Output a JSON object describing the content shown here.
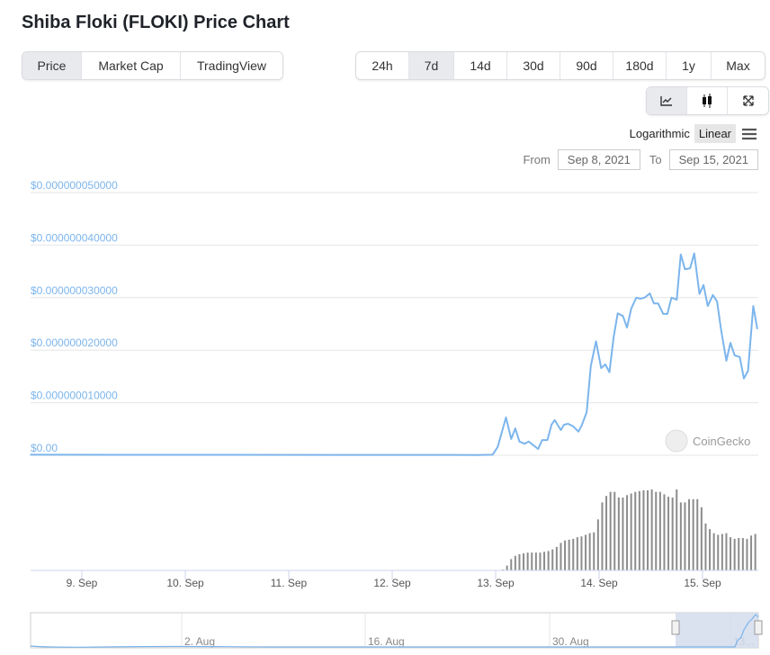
{
  "title": "Shiba Floki (FLOKI) Price Chart",
  "tabs": [
    {
      "label": "Price",
      "active": true
    },
    {
      "label": "Market Cap"
    },
    {
      "label": "TradingView"
    }
  ],
  "ranges": [
    {
      "label": "24h"
    },
    {
      "label": "7d",
      "active": true
    },
    {
      "label": "14d"
    },
    {
      "label": "30d"
    },
    {
      "label": "90d"
    },
    {
      "label": "180d"
    },
    {
      "label": "1y"
    },
    {
      "label": "Max"
    }
  ],
  "chart_types": [
    {
      "icon": "line-chart-icon",
      "active": true
    },
    {
      "icon": "candlestick-icon"
    },
    {
      "icon": "fullscreen-icon"
    }
  ],
  "scale": {
    "log": "Logarithmic",
    "linear": "Linear",
    "menu_icon": "hamburger-menu-icon"
  },
  "dates": {
    "from_label": "From",
    "from": "Sep 8, 2021",
    "to_label": "To",
    "to": "Sep 15, 2021"
  },
  "watermark": "CoinGecko",
  "colors": {
    "line": "#7cb5ec",
    "volume": "#8c8c8c",
    "grid": "#e6e6e6",
    "nav_selection": "#d3dcec"
  },
  "chart_data": {
    "type": "line",
    "yunit": "1e-9 USD",
    "ylim": [
      0,
      50
    ],
    "yticks": [
      {
        "v": 50,
        "label": "$0.000000050000"
      },
      {
        "v": 40,
        "label": "$0.000000040000"
      },
      {
        "v": 30,
        "label": "$0.000000030000"
      },
      {
        "v": 20,
        "label": "$0.000000020000"
      },
      {
        "v": 10,
        "label": "$0.000000010000"
      },
      {
        "v": 0,
        "label": "$0.00"
      }
    ],
    "xlim": [
      8.5,
      15.54
    ],
    "xticks": [
      {
        "d": 9,
        "label": "9. Sep"
      },
      {
        "d": 10,
        "label": "10. Sep"
      },
      {
        "d": 11,
        "label": "11. Sep"
      },
      {
        "d": 12,
        "label": "12. Sep"
      },
      {
        "d": 13,
        "label": "13. Sep"
      },
      {
        "d": 14,
        "label": "14. Sep"
      },
      {
        "d": 15,
        "label": "15. Sep"
      }
    ],
    "price": [
      [
        8.5,
        0.1
      ],
      [
        12.82,
        0.05
      ],
      [
        12.97,
        0.1
      ],
      [
        13.02,
        1.6
      ],
      [
        13.1,
        7.2
      ],
      [
        13.15,
        3.1
      ],
      [
        13.19,
        5.1
      ],
      [
        13.23,
        2.6
      ],
      [
        13.28,
        2.2
      ],
      [
        13.32,
        2.6
      ],
      [
        13.41,
        1.2
      ],
      [
        13.45,
        2.9
      ],
      [
        13.5,
        2.9
      ],
      [
        13.54,
        5.8
      ],
      [
        13.57,
        6.7
      ],
      [
        13.63,
        4.8
      ],
      [
        13.66,
        5.8
      ],
      [
        13.7,
        6.0
      ],
      [
        13.75,
        5.5
      ],
      [
        13.8,
        4.5
      ],
      [
        13.83,
        5.6
      ],
      [
        13.88,
        8.2
      ],
      [
        13.92,
        17.0
      ],
      [
        13.97,
        21.7
      ],
      [
        14.02,
        16.6
      ],
      [
        14.06,
        17.3
      ],
      [
        14.1,
        15.8
      ],
      [
        14.14,
        22.4
      ],
      [
        14.18,
        27.0
      ],
      [
        14.23,
        26.5
      ],
      [
        14.27,
        24.3
      ],
      [
        14.31,
        27.9
      ],
      [
        14.36,
        30.0
      ],
      [
        14.4,
        29.8
      ],
      [
        14.44,
        30.0
      ],
      [
        14.49,
        30.8
      ],
      [
        14.53,
        28.9
      ],
      [
        14.57,
        28.9
      ],
      [
        14.62,
        26.9
      ],
      [
        14.66,
        26.9
      ],
      [
        14.7,
        30.0
      ],
      [
        14.75,
        29.6
      ],
      [
        14.79,
        38.2
      ],
      [
        14.83,
        35.4
      ],
      [
        14.88,
        35.6
      ],
      [
        14.92,
        38.4
      ],
      [
        14.97,
        30.7
      ],
      [
        15.01,
        32.4
      ],
      [
        15.05,
        28.4
      ],
      [
        15.1,
        30.5
      ],
      [
        15.14,
        29.3
      ],
      [
        15.18,
        23.8
      ],
      [
        15.23,
        18.0
      ],
      [
        15.27,
        21.4
      ],
      [
        15.31,
        19.0
      ],
      [
        15.36,
        18.7
      ],
      [
        15.4,
        14.6
      ],
      [
        15.44,
        16.1
      ],
      [
        15.49,
        28.4
      ],
      [
        15.53,
        24.0
      ]
    ],
    "volume_start": 13.07,
    "volume_step": 0.04,
    "volume_relative": [
      1,
      6,
      14,
      18,
      20,
      21,
      22,
      22,
      22,
      22,
      23,
      24,
      26,
      29,
      34,
      37,
      38,
      39,
      41,
      42,
      44,
      46,
      47,
      63,
      84,
      92,
      97,
      97,
      90,
      90,
      93,
      95,
      97,
      98,
      99,
      99,
      100,
      97,
      97,
      94,
      91,
      90,
      100,
      84,
      84,
      88,
      88,
      88,
      78,
      58,
      51,
      46,
      44,
      45,
      46,
      41,
      39,
      40,
      40,
      39,
      43,
      45
    ],
    "navigator": {
      "labels": [
        "2. Aug",
        "16. Aug",
        "30. Aug",
        "13..."
      ]
    }
  }
}
